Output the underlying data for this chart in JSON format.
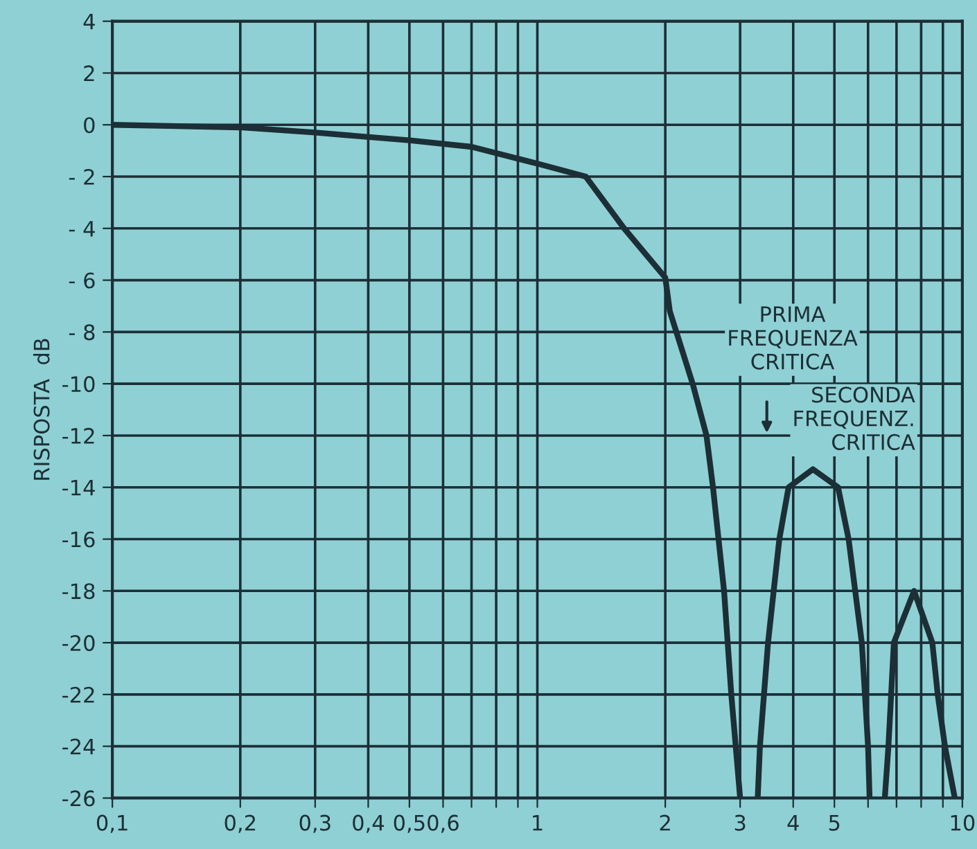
{
  "chart_data": {
    "type": "line",
    "ylabel": "RISPOSTA  dB",
    "log": "x",
    "x": [
      0.1,
      0.2,
      0.3,
      0.5,
      0.7,
      1.0,
      1.3,
      1.6,
      2.0,
      2.05,
      2.32,
      2.5,
      2.59,
      2.75,
      2.86,
      3.0,
      null,
      3.3,
      3.34,
      3.49,
      3.71,
      3.9,
      4.45,
      5.1,
      5.4,
      5.8,
      6.0,
      6.05,
      null,
      6.57,
      6.7,
      6.9,
      7.7,
      8.5,
      8.75,
      9.1,
      9.6
    ],
    "series": [
      {
        "color": "#1c2f36",
        "values": [
          0,
          -0.1,
          -0.3,
          -0.6,
          -0.85,
          -1.5,
          -2,
          -4,
          -5.9,
          -7.2,
          -10,
          -12,
          -14,
          -18,
          -22,
          -26,
          null,
          -26,
          -24,
          -20,
          -16,
          -14,
          -13.3,
          -14,
          -16,
          -20,
          -24,
          -26,
          null,
          -26,
          -24,
          -20,
          -18,
          -20,
          -22,
          -24,
          -26
        ]
      }
    ],
    "xlim": [
      0.1,
      10
    ],
    "ylim": [
      -26,
      4
    ],
    "xticks": [
      {
        "value": 0.1,
        "label": "0,1"
      },
      {
        "value": 0.2,
        "label": "0,2"
      },
      {
        "value": 0.3,
        "label": "0,3"
      },
      {
        "value": 0.4,
        "label": "0,4"
      },
      {
        "value": 0.5,
        "label": "0,5"
      },
      {
        "value": 0.6,
        "label": "0,6"
      },
      {
        "value": 0.7,
        "label": null
      },
      {
        "value": 0.8,
        "label": null
      },
      {
        "value": 0.9,
        "label": null
      },
      1,
      2,
      3,
      4,
      5,
      {
        "value": 6,
        "label": null
      },
      {
        "value": 7,
        "label": null
      },
      {
        "value": 8,
        "label": null
      },
      {
        "value": 9,
        "label": null
      },
      10
    ],
    "yticks": [
      4,
      2,
      0,
      -2,
      -4,
      -6,
      -8,
      -10,
      -12,
      -14,
      -16,
      -18,
      -20,
      -22,
      -24,
      -26
    ],
    "grid": true,
    "line_style": "solid",
    "marker": "none",
    "annotations": [
      "PRIMA\nFREQUENZA\nCRITICA",
      "SECONDA\nFREQUENZ.\nCRITICA"
    ]
  }
}
